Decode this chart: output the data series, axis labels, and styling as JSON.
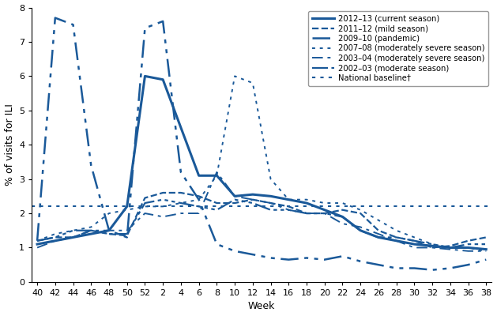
{
  "xlabel": "Week",
  "ylabel": "% of visits for ILI",
  "color": "#1a5999",
  "baseline": 2.2,
  "ylim": [
    0,
    8
  ],
  "yticks": [
    0,
    1,
    2,
    3,
    4,
    5,
    6,
    7,
    8
  ],
  "week_labels": [
    "40",
    "42",
    "44",
    "46",
    "48",
    "50",
    "52",
    "2",
    "4",
    "6",
    "8",
    "10",
    "12",
    "14",
    "16",
    "18",
    "20",
    "22",
    "24",
    "26",
    "28",
    "30",
    "32",
    "34",
    "36",
    "38"
  ],
  "series": [
    {
      "label": "2012–13 (current season)",
      "style_idx": 0,
      "values": [
        1.1,
        1.2,
        1.3,
        1.4,
        1.5,
        2.2,
        6.0,
        5.9,
        4.5,
        3.1,
        3.1,
        2.5,
        2.55,
        2.5,
        2.4,
        2.3,
        2.1,
        1.9,
        1.5,
        1.3,
        1.2,
        1.1,
        1.05,
        1.0,
        1.0,
        0.95
      ]
    },
    {
      "label": "2011–12 (mild season)",
      "style_idx": 1,
      "values": [
        1.2,
        1.3,
        1.3,
        1.5,
        1.4,
        1.35,
        2.45,
        2.6,
        2.6,
        2.5,
        2.3,
        2.3,
        2.4,
        2.3,
        2.2,
        2.0,
        2.0,
        2.1,
        2.0,
        1.5,
        1.3,
        1.2,
        1.0,
        1.05,
        1.2,
        1.3
      ]
    },
    {
      "label": "2009–10 (pandemic)",
      "style_idx": 2,
      "values": [
        1.2,
        7.7,
        7.5,
        3.4,
        1.5,
        1.3,
        7.4,
        7.6,
        3.2,
        2.4,
        1.1,
        0.9,
        0.8,
        0.7,
        0.65,
        0.7,
        0.65,
        0.75,
        0.6,
        0.5,
        0.4,
        0.4,
        0.35,
        0.4,
        0.5,
        0.65
      ]
    },
    {
      "label": "2007–08 (moderately severe season)",
      "style_idx": 3,
      "values": [
        1.2,
        1.4,
        1.5,
        1.6,
        2.0,
        2.1,
        2.2,
        2.2,
        2.3,
        2.4,
        3.1,
        6.0,
        5.8,
        3.0,
        2.4,
        2.4,
        2.3,
        2.3,
        2.1,
        1.8,
        1.5,
        1.3,
        1.1,
        1.0,
        1.0,
        0.9
      ]
    },
    {
      "label": "2003–04 (moderately severe season)",
      "style_idx": 4,
      "values": [
        1.0,
        1.2,
        1.3,
        1.5,
        1.5,
        1.5,
        2.0,
        1.9,
        2.0,
        2.0,
        3.2,
        2.5,
        2.4,
        2.3,
        2.1,
        2.0,
        2.0,
        1.7,
        1.6,
        1.4,
        1.2,
        1.0,
        1.0,
        0.95,
        0.9,
        0.9
      ]
    },
    {
      "label": "2002–03 (moderate season)",
      "style_idx": 5,
      "values": [
        1.2,
        1.3,
        1.5,
        1.5,
        1.4,
        1.4,
        2.3,
        2.4,
        2.3,
        2.2,
        2.1,
        2.4,
        2.3,
        2.1,
        2.1,
        2.0,
        2.0,
        1.9,
        1.5,
        1.3,
        1.3,
        1.2,
        1.1,
        1.0,
        1.1,
        1.1
      ]
    }
  ]
}
